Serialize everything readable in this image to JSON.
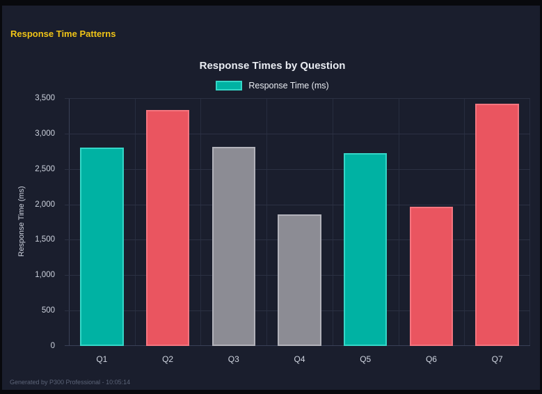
{
  "header": {
    "title": "Response Time Patterns"
  },
  "footer": {
    "text": "Generated by P300 Professional - 10:05:14"
  },
  "theme": {
    "frame_color": "#08090d",
    "background": "#1a1e2d",
    "accent_yellow": "#f0c417",
    "text_primary": "#e9ecf2",
    "text_secondary": "#cdd2dd",
    "text_muted": "#5c6478",
    "gridline": "#2b3143"
  },
  "chart_data": {
    "type": "bar",
    "title": "Response Times by Question",
    "legend": [
      {
        "label": "Response Time (ms)",
        "color": "#00b2a3",
        "border_color": "#35d6c7"
      }
    ],
    "legend_position": "top",
    "xlabel": "",
    "ylabel": "Response Time (ms)",
    "ylim": [
      0,
      3500
    ],
    "y_tick_step": 500,
    "y_tick_labels_top_to_bottom": [
      "3,500",
      "3,000",
      "2,500",
      "2,000",
      "1,500",
      "1,000",
      "500",
      "0"
    ],
    "grid": true,
    "categories": [
      "Q1",
      "Q2",
      "Q3",
      "Q4",
      "Q5",
      "Q6",
      "Q7"
    ],
    "values": [
      2800,
      3330,
      2810,
      1860,
      2720,
      1970,
      3420
    ],
    "bar_fill_colors": [
      "#00b2a3",
      "#ea5560",
      "#8c8c94",
      "#8c8c94",
      "#00b2a3",
      "#ea5560",
      "#ea5560"
    ],
    "bar_border_colors": [
      "#35d6c7",
      "#f4757f",
      "#b2b2ba",
      "#b2b2ba",
      "#35d6c7",
      "#f4757f",
      "#f4757f"
    ]
  }
}
